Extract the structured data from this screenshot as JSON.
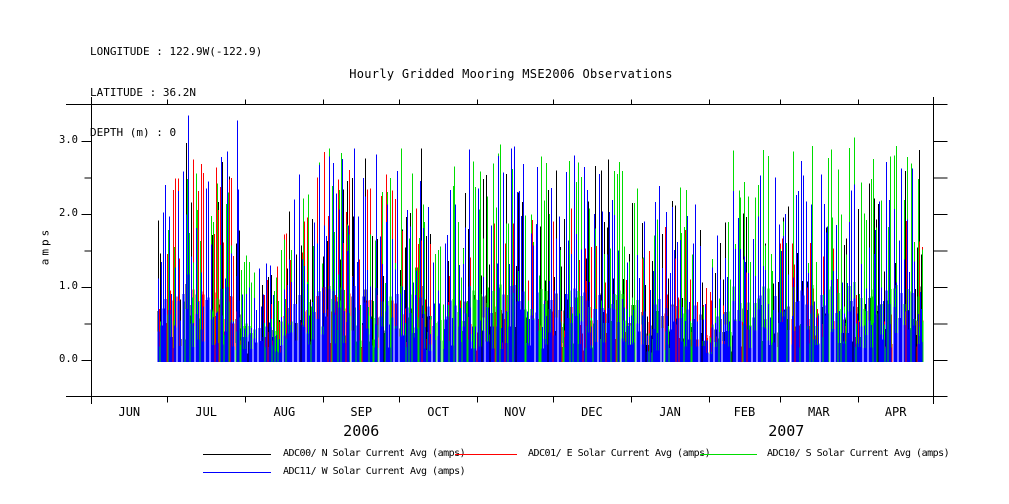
{
  "header": {
    "longitude": "LONGITUDE : 122.9W(-122.9)",
    "latitude": "LATITUDE : 36.2N",
    "depth": "DEPTH (m) : 0"
  },
  "title": "Hourly Gridded Mooring MSE2006 Observations",
  "chart_data": {
    "type": "line",
    "subtype": "daily-spike-series",
    "title": "Hourly Gridded Mooring MSE2006 Observations",
    "ylabel": "amps",
    "ylim": [
      -0.5,
      3.5
    ],
    "ytick_values": [
      0,
      1,
      2,
      3
    ],
    "ytick_labels": [
      "0.0",
      "1.0",
      "2.0",
      "3.0"
    ],
    "ytick_minor_values": [
      0.5,
      1.5,
      2.5
    ],
    "right_axis_tick_values": [
      0,
      0.5,
      1,
      1.5,
      2,
      2.5,
      3
    ],
    "grid": false,
    "legend_position": "bottom",
    "x_axis": {
      "month_labels": [
        "JUN",
        "JUL",
        "AUG",
        "SEP",
        "OCT",
        "NOV",
        "DEC",
        "JAN",
        "FEB",
        "MAR",
        "APR"
      ],
      "month_days": [
        30,
        31,
        31,
        30,
        31,
        30,
        31,
        31,
        28,
        31,
        30
      ],
      "year_labels": [
        {
          "text": "2006",
          "day": 107
        },
        {
          "text": "2007",
          "day": 275.6
        }
      ]
    },
    "sampling": "daily peak of hourly solar current average (amps); day index 0 = 2006-06-01; observations span day 26 (2006-06-27) to day 329 (2007-04-26)",
    "data_day_range": [
      26,
      329
    ],
    "value_range_observed": [
      0.0,
      3.35
    ],
    "seed": 11,
    "series": [
      {
        "name": "ADC00/ N Solar Current Avg (amps)",
        "color": "#000000",
        "envelope": [
          [
            26,
            2.2
          ],
          [
            31,
            2.7
          ],
          [
            37,
            3.0
          ],
          [
            45,
            2.5
          ],
          [
            52,
            2.9
          ],
          [
            58,
            2.2
          ],
          [
            63,
            1.1
          ],
          [
            72,
            1.3
          ],
          [
            80,
            2.8
          ],
          [
            90,
            2.0
          ],
          [
            100,
            2.5
          ],
          [
            108,
            2.9
          ],
          [
            116,
            2.1
          ],
          [
            124,
            2.5
          ],
          [
            130,
            2.9
          ],
          [
            136,
            1.6
          ],
          [
            144,
            2.2
          ],
          [
            152,
            2.6
          ],
          [
            160,
            2.9
          ],
          [
            170,
            2.3
          ],
          [
            178,
            2.9
          ],
          [
            188,
            2.4
          ],
          [
            198,
            2.7
          ],
          [
            206,
            2.8
          ],
          [
            214,
            2.4
          ],
          [
            222,
            1.5
          ],
          [
            230,
            2.3
          ],
          [
            238,
            2.4
          ],
          [
            244,
            1.2
          ],
          [
            252,
            2.1
          ],
          [
            260,
            2.4
          ],
          [
            268,
            2.5
          ],
          [
            276,
            2.2
          ],
          [
            284,
            2.4
          ],
          [
            292,
            2.3
          ],
          [
            300,
            2.5
          ],
          [
            310,
            2.4
          ],
          [
            320,
            2.6
          ],
          [
            329,
            2.9
          ]
        ],
        "features": [
          [
            37,
            2.97
          ],
          [
            130,
            2.9
          ],
          [
            328,
            2.88
          ]
        ]
      },
      {
        "name": "ADC01/ E Solar Current Avg (amps)",
        "color": "#ff0000",
        "envelope": [
          [
            26,
            2.1
          ],
          [
            33,
            2.6
          ],
          [
            40,
            2.8
          ],
          [
            48,
            2.7
          ],
          [
            55,
            2.5
          ],
          [
            63,
            1.0
          ],
          [
            72,
            1.2
          ],
          [
            80,
            2.7
          ],
          [
            86,
            2.3
          ],
          [
            92,
            2.85
          ],
          [
            100,
            2.7
          ],
          [
            108,
            2.4
          ],
          [
            116,
            2.7
          ],
          [
            124,
            2.0
          ],
          [
            130,
            2.4
          ],
          [
            136,
            1.4
          ],
          [
            144,
            1.8
          ],
          [
            152,
            2.1
          ],
          [
            160,
            2.2
          ],
          [
            170,
            1.8
          ],
          [
            180,
            2.1
          ],
          [
            190,
            2.3
          ],
          [
            200,
            2.0
          ],
          [
            210,
            2.3
          ],
          [
            220,
            1.5
          ],
          [
            230,
            2.0
          ],
          [
            238,
            1.7
          ],
          [
            245,
            1.0
          ],
          [
            252,
            1.5
          ],
          [
            260,
            1.9
          ],
          [
            268,
            2.3
          ],
          [
            276,
            1.6
          ],
          [
            284,
            1.8
          ],
          [
            292,
            2.2
          ],
          [
            302,
            1.6
          ],
          [
            312,
            1.5
          ],
          [
            322,
            2.1
          ],
          [
            329,
            1.7
          ]
        ],
        "features": [
          [
            40,
            2.75
          ],
          [
            92,
            2.85
          ]
        ]
      },
      {
        "name": "ADC10/ S Solar Current Avg (amps)",
        "color": "#00dd00",
        "envelope": [
          [
            26,
            2.8
          ],
          [
            34,
            2.4
          ],
          [
            42,
            2.7
          ],
          [
            50,
            2.5
          ],
          [
            58,
            2.1
          ],
          [
            64,
            1.2
          ],
          [
            74,
            1.4
          ],
          [
            82,
            2.7
          ],
          [
            92,
            2.9
          ],
          [
            102,
            2.9
          ],
          [
            112,
            2.6
          ],
          [
            122,
            2.9
          ],
          [
            130,
            2.8
          ],
          [
            136,
            1.7
          ],
          [
            144,
            2.9
          ],
          [
            152,
            2.7
          ],
          [
            162,
            2.95
          ],
          [
            172,
            2.8
          ],
          [
            182,
            2.9
          ],
          [
            192,
            2.7
          ],
          [
            202,
            2.9
          ],
          [
            212,
            2.8
          ],
          [
            222,
            1.7
          ],
          [
            232,
            2.9
          ],
          [
            240,
            2.5
          ],
          [
            246,
            1.5
          ],
          [
            254,
            2.9
          ],
          [
            262,
            3.0
          ],
          [
            272,
            2.8
          ],
          [
            282,
            3.0
          ],
          [
            292,
            2.9
          ],
          [
            302,
            3.05
          ],
          [
            312,
            2.8
          ],
          [
            322,
            3.0
          ],
          [
            329,
            2.6
          ]
        ],
        "features": [
          [
            122,
            2.9
          ],
          [
            162,
            2.95
          ],
          [
            302,
            3.05
          ]
        ]
      },
      {
        "name": "ADC11/ W Solar Current Avg (amps)",
        "color": "#0000ff",
        "envelope": [
          [
            26,
            2.4
          ],
          [
            33,
            2.8
          ],
          [
            38,
            3.35
          ],
          [
            45,
            2.6
          ],
          [
            52,
            3.0
          ],
          [
            57,
            3.3
          ],
          [
            63,
            1.2
          ],
          [
            74,
            1.5
          ],
          [
            82,
            2.6
          ],
          [
            90,
            2.9
          ],
          [
            100,
            2.8
          ],
          [
            108,
            2.95
          ],
          [
            118,
            2.7
          ],
          [
            128,
            2.9
          ],
          [
            136,
            2.0
          ],
          [
            146,
            2.9
          ],
          [
            156,
            2.85
          ],
          [
            166,
            2.95
          ],
          [
            176,
            2.9
          ],
          [
            186,
            2.8
          ],
          [
            196,
            2.9
          ],
          [
            206,
            2.7
          ],
          [
            216,
            1.7
          ],
          [
            226,
            2.5
          ],
          [
            236,
            2.6
          ],
          [
            245,
            1.4
          ],
          [
            254,
            2.7
          ],
          [
            264,
            2.8
          ],
          [
            274,
            2.6
          ],
          [
            284,
            2.8
          ],
          [
            294,
            2.7
          ],
          [
            306,
            2.4
          ],
          [
            316,
            2.8
          ],
          [
            329,
            2.6
          ]
        ],
        "features": [
          [
            38,
            3.35
          ],
          [
            57,
            3.28
          ],
          [
            104,
            2.9
          ],
          [
            166,
            2.9
          ]
        ]
      }
    ]
  }
}
